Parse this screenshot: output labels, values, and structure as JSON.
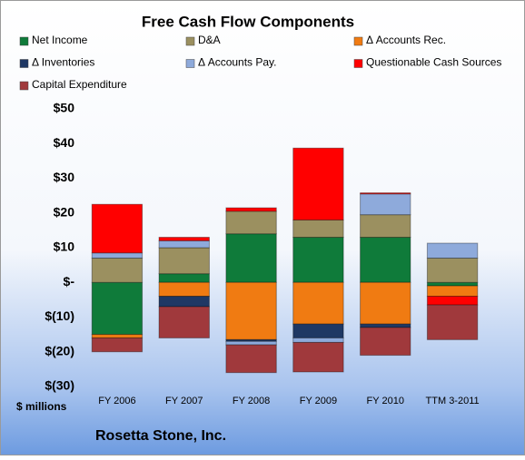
{
  "chart_data": {
    "type": "stacked_bar",
    "title": "Free Cash Flow Components",
    "y_axis_label": "$ millions",
    "footer": "Rosetta Stone, Inc.",
    "categories": [
      "FY 2006",
      "FY 2007",
      "FY 2008",
      "FY 2009",
      "FY 2010",
      "TTM 3-2011"
    ],
    "series": [
      {
        "name": "Net Income",
        "color": "#0f7b3a",
        "values": [
          -15,
          2.5,
          14,
          13,
          13,
          -1
        ]
      },
      {
        "name": "D&A",
        "color": "#9b9060",
        "values": [
          7,
          7.5,
          6.5,
          5,
          6.5,
          7
        ]
      },
      {
        "name": "Δ Accounts Rec.",
        "color": "#f07b12",
        "values": [
          -1,
          -4,
          -16.5,
          -12,
          -12,
          -3
        ]
      },
      {
        "name": "Δ Inventories",
        "color": "#1f3864",
        "values": [
          0,
          -3,
          -0.5,
          -4,
          -1,
          0
        ]
      },
      {
        "name": "Δ Accounts Pay.",
        "color": "#8eaadb",
        "values": [
          1.5,
          2,
          -1,
          -1.3,
          6,
          4.3
        ]
      },
      {
        "name": "Questionable Cash Sources",
        "color": "#ff0000",
        "values": [
          14,
          1,
          1,
          20.7,
          0.3,
          -2.5
        ]
      },
      {
        "name": "Capital Expenditure",
        "color": "#a0393c",
        "values": [
          -4,
          -9,
          -8,
          -8.5,
          -8,
          -10
        ]
      }
    ],
    "ylim": [
      -30,
      50
    ],
    "yticks": [
      {
        "value": 50,
        "label": "$50"
      },
      {
        "value": 40,
        "label": "$40"
      },
      {
        "value": 30,
        "label": "$30"
      },
      {
        "value": 20,
        "label": "$20"
      },
      {
        "value": 10,
        "label": "$10"
      },
      {
        "value": 0,
        "label": "$-"
      },
      {
        "value": -10,
        "label": "$(10)"
      },
      {
        "value": -20,
        "label": "$(20)"
      },
      {
        "value": -30,
        "label": "$(30)"
      }
    ],
    "grid": false
  }
}
